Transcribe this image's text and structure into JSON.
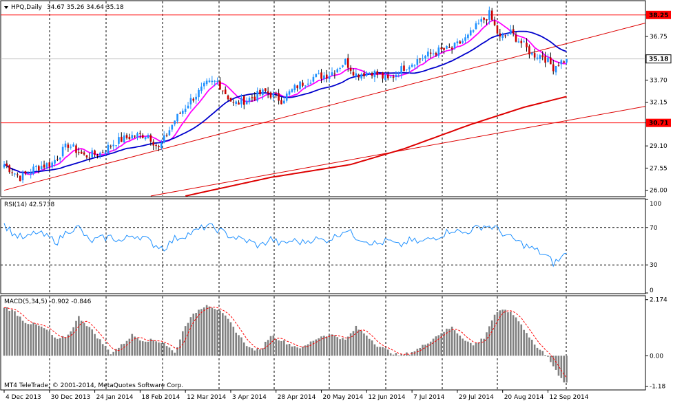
{
  "chart_data": {
    "type": "candlestick",
    "symbol_title": "HPQ,Daily",
    "ohlc_header": "34.67 35.26 34.64 35.18",
    "x_ticks": [
      "4 Dec 2013",
      "30 Dec 2013",
      "24 Jan 2014",
      "18 Feb 2014",
      "12 Mar 2014",
      "3 Apr 2014",
      "28 Apr 2014",
      "20 May 2014",
      "12 Jun 2014",
      "7 Jul 2014",
      "29 Jul 2014",
      "20 Aug 2014",
      "12 Sep 2014"
    ],
    "price_panel": {
      "y_ticks": [
        "38.25",
        "36.75",
        "35.18",
        "33.70",
        "32.15",
        "30.71",
        "29.10",
        "27.55",
        "26.00"
      ],
      "ylim": [
        25.6,
        39.2
      ],
      "horizontal_levels": [
        {
          "value": 38.25,
          "label": "38.25",
          "color": "#ff0000"
        },
        {
          "value": 30.71,
          "label": "30.71",
          "color": "#ff0000"
        }
      ],
      "current_price": {
        "value": 35.18,
        "label": "35.18"
      },
      "trendlines": [
        {
          "from": [
            0,
            26.0
          ],
          "to": [
            212,
            36.3
          ],
          "color": "#dd0000"
        },
        {
          "from": [
            55,
            25.6
          ],
          "to": [
            212,
            30.9
          ],
          "color": "#dd0000"
        }
      ],
      "moving_average_colors": [
        "#ff00ff",
        "#0000cc",
        "#dd0000"
      ],
      "candles_anchor_closes": [
        [
          0,
          27.8
        ],
        [
          6,
          26.9
        ],
        [
          12,
          27.6
        ],
        [
          18,
          27.9
        ],
        [
          24,
          29.2
        ],
        [
          30,
          28.4
        ],
        [
          36,
          28.6
        ],
        [
          42,
          29.4
        ],
        [
          48,
          29.8
        ],
        [
          54,
          29.9
        ],
        [
          58,
          28.9
        ],
        [
          64,
          30.9
        ],
        [
          70,
          32.3
        ],
        [
          76,
          33.4
        ],
        [
          80,
          33.6
        ],
        [
          86,
          32.0
        ],
        [
          92,
          32.4
        ],
        [
          98,
          32.9
        ],
        [
          104,
          32.3
        ],
        [
          110,
          33.3
        ],
        [
          116,
          33.9
        ],
        [
          122,
          34.1
        ],
        [
          128,
          35.0
        ],
        [
          132,
          34.1
        ],
        [
          138,
          34.3
        ],
        [
          144,
          33.7
        ],
        [
          150,
          34.6
        ],
        [
          156,
          35.2
        ],
        [
          162,
          35.7
        ],
        [
          168,
          35.9
        ],
        [
          174,
          36.7
        ],
        [
          178,
          37.6
        ],
        [
          182,
          38.3
        ],
        [
          186,
          36.6
        ],
        [
          190,
          37.0
        ],
        [
          194,
          36.3
        ],
        [
          198,
          35.5
        ],
        [
          202,
          35.4
        ],
        [
          206,
          34.6
        ],
        [
          208,
          34.9
        ],
        [
          211,
          35.18
        ]
      ]
    },
    "rsi_panel": {
      "title": "RSI(14) 42.5738",
      "y_ticks": [
        "100",
        "70",
        "30",
        "0"
      ],
      "ylim": [
        0,
        100
      ],
      "levels": [
        70,
        30
      ],
      "color": "#1e90ff",
      "anchor_values": [
        [
          0,
          73
        ],
        [
          4,
          62
        ],
        [
          8,
          58
        ],
        [
          12,
          65
        ],
        [
          16,
          60
        ],
        [
          20,
          55
        ],
        [
          24,
          67
        ],
        [
          28,
          70
        ],
        [
          32,
          55
        ],
        [
          36,
          58
        ],
        [
          40,
          60
        ],
        [
          44,
          55
        ],
        [
          48,
          62
        ],
        [
          52,
          60
        ],
        [
          56,
          52
        ],
        [
          60,
          48
        ],
        [
          64,
          58
        ],
        [
          68,
          62
        ],
        [
          72,
          66
        ],
        [
          76,
          72
        ],
        [
          80,
          68
        ],
        [
          84,
          62
        ],
        [
          88,
          58
        ],
        [
          92,
          55
        ],
        [
          96,
          50
        ],
        [
          100,
          58
        ],
        [
          104,
          52
        ],
        [
          108,
          56
        ],
        [
          112,
          54
        ],
        [
          116,
          58
        ],
        [
          120,
          56
        ],
        [
          124,
          60
        ],
        [
          128,
          68
        ],
        [
          132,
          60
        ],
        [
          136,
          56
        ],
        [
          140,
          52
        ],
        [
          144,
          56
        ],
        [
          148,
          50
        ],
        [
          152,
          56
        ],
        [
          156,
          54
        ],
        [
          160,
          58
        ],
        [
          164,
          62
        ],
        [
          168,
          68
        ],
        [
          172,
          64
        ],
        [
          176,
          68
        ],
        [
          180,
          72
        ],
        [
          184,
          70
        ],
        [
          188,
          62
        ],
        [
          192,
          56
        ],
        [
          196,
          50
        ],
        [
          200,
          45
        ],
        [
          204,
          38
        ],
        [
          206,
          32
        ],
        [
          208,
          35
        ],
        [
          211,
          42.57
        ]
      ]
    },
    "macd_panel": {
      "title": "MACD(5,34,5) -0.902 -0.846",
      "y_ticks": [
        "2.174",
        "0.00",
        "-1.18"
      ],
      "ylim": [
        -1.3,
        2.3
      ],
      "signal_color": "#ff0000",
      "histogram_color": "#808080",
      "anchor_values": [
        [
          0,
          1.9
        ],
        [
          4,
          1.7
        ],
        [
          8,
          1.3
        ],
        [
          12,
          1.2
        ],
        [
          16,
          1.0
        ],
        [
          20,
          0.6
        ],
        [
          24,
          0.8
        ],
        [
          28,
          1.5
        ],
        [
          32,
          1.1
        ],
        [
          36,
          0.6
        ],
        [
          40,
          0.1
        ],
        [
          44,
          0.4
        ],
        [
          48,
          0.8
        ],
        [
          52,
          0.6
        ],
        [
          56,
          0.6
        ],
        [
          60,
          0.5
        ],
        [
          64,
          0.1
        ],
        [
          68,
          1.2
        ],
        [
          72,
          1.7
        ],
        [
          76,
          2.0
        ],
        [
          80,
          1.8
        ],
        [
          84,
          1.4
        ],
        [
          88,
          0.8
        ],
        [
          92,
          0.3
        ],
        [
          96,
          0.2
        ],
        [
          100,
          0.8
        ],
        [
          104,
          0.6
        ],
        [
          108,
          0.4
        ],
        [
          112,
          0.3
        ],
        [
          116,
          0.6
        ],
        [
          120,
          0.8
        ],
        [
          124,
          0.8
        ],
        [
          128,
          0.6
        ],
        [
          132,
          1.1
        ],
        [
          136,
          0.8
        ],
        [
          140,
          0.4
        ],
        [
          144,
          0.2
        ],
        [
          148,
          0.0
        ],
        [
          152,
          0.1
        ],
        [
          156,
          0.3
        ],
        [
          160,
          0.6
        ],
        [
          164,
          0.9
        ],
        [
          168,
          1.1
        ],
        [
          172,
          0.7
        ],
        [
          176,
          0.4
        ],
        [
          180,
          0.7
        ],
        [
          184,
          1.6
        ],
        [
          188,
          1.8
        ],
        [
          192,
          1.5
        ],
        [
          196,
          0.9
        ],
        [
          200,
          0.3
        ],
        [
          204,
          0.0
        ],
        [
          206,
          -0.4
        ],
        [
          208,
          -0.8
        ],
        [
          211,
          -1.1
        ]
      ]
    },
    "copyright": "MT4 TeleTrade, © 2001-2014, MetaQuotes Software Corp."
  }
}
